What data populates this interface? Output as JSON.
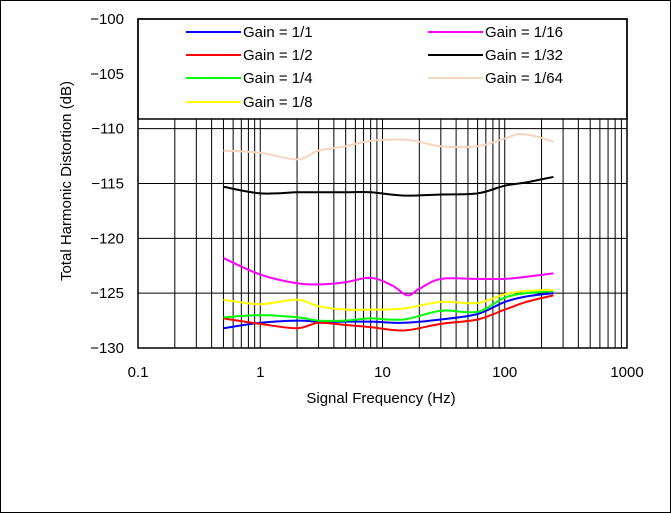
{
  "chart_data": {
    "type": "line",
    "title": "",
    "xlabel": "Signal Frequency (Hz)",
    "ylabel": "Total Harmonic Distortion (dB)",
    "x_scale": "log",
    "xlim": [
      0.1,
      1000
    ],
    "ylim": [
      -130,
      -100
    ],
    "grid": "x-log-minor",
    "legend_placement": "top",
    "x_ticks": [
      "0.1",
      "1",
      "10",
      "100",
      "1000"
    ],
    "y_ticks": [
      "−100",
      "−105",
      "−110",
      "−115",
      "−120",
      "−125",
      "−130"
    ],
    "series": [
      {
        "name": "Gain = 1/1",
        "color": "#0000ff",
        "x": [
          0.5,
          1,
          2,
          3,
          5,
          8,
          15,
          30,
          60,
          100,
          150,
          250
        ],
        "y": [
          -128.2,
          -127.7,
          -127.5,
          -127.6,
          -127.6,
          -127.6,
          -127.7,
          -127.4,
          -126.9,
          -125.8,
          -125.3,
          -125.0
        ]
      },
      {
        "name": "Gain = 1/2",
        "color": "#ff0000",
        "x": [
          0.5,
          1,
          2,
          3,
          5,
          8,
          15,
          30,
          60,
          100,
          150,
          250
        ],
        "y": [
          -127.3,
          -127.8,
          -128.2,
          -127.7,
          -127.9,
          -128.1,
          -128.4,
          -127.8,
          -127.4,
          -126.5,
          -125.8,
          -125.2
        ]
      },
      {
        "name": "Gain = 1/4",
        "color": "#00ff00",
        "x": [
          0.5,
          1,
          2,
          3,
          5,
          8,
          15,
          30,
          60,
          100,
          150,
          250
        ],
        "y": [
          -127.2,
          -127.0,
          -127.2,
          -127.5,
          -127.5,
          -127.3,
          -127.4,
          -126.6,
          -126.7,
          -125.4,
          -125.0,
          -124.8
        ]
      },
      {
        "name": "Gain = 1/8",
        "color": "#ffff00",
        "x": [
          0.5,
          1,
          2,
          3,
          5,
          8,
          15,
          30,
          60,
          100,
          150,
          250
        ],
        "y": [
          -125.6,
          -126.0,
          -125.6,
          -126.2,
          -126.5,
          -126.5,
          -126.4,
          -125.8,
          -125.9,
          -125.1,
          -124.8,
          -124.7
        ]
      },
      {
        "name": "Gain = 1/16",
        "color": "#ff00ff",
        "x": [
          0.5,
          1,
          2,
          3,
          5,
          8,
          12,
          16,
          20,
          30,
          60,
          100,
          150,
          250
        ],
        "y": [
          -121.8,
          -123.3,
          -124.1,
          -124.2,
          -124.0,
          -123.6,
          -124.3,
          -125.2,
          -124.6,
          -123.7,
          -123.7,
          -123.7,
          -123.5,
          -123.2
        ]
      },
      {
        "name": "Gain = 1/32",
        "color": "#000000",
        "x": [
          0.5,
          1,
          2,
          3,
          5,
          8,
          15,
          30,
          60,
          100,
          150,
          250
        ],
        "y": [
          -115.3,
          -115.9,
          -115.8,
          -115.8,
          -115.8,
          -115.8,
          -116.1,
          -116.0,
          -115.9,
          -115.2,
          -114.9,
          -114.4
        ]
      },
      {
        "name": "Gain = 1/64",
        "color": "#f5d5bd",
        "x": [
          0.5,
          1,
          2,
          3,
          5,
          8,
          15,
          20,
          30,
          60,
          100,
          130,
          180,
          250
        ],
        "y": [
          -112.0,
          -112.2,
          -112.8,
          -112.0,
          -111.6,
          -111.1,
          -111.0,
          -111.2,
          -111.6,
          -111.6,
          -110.9,
          -110.5,
          -110.7,
          -111.2
        ]
      }
    ]
  }
}
